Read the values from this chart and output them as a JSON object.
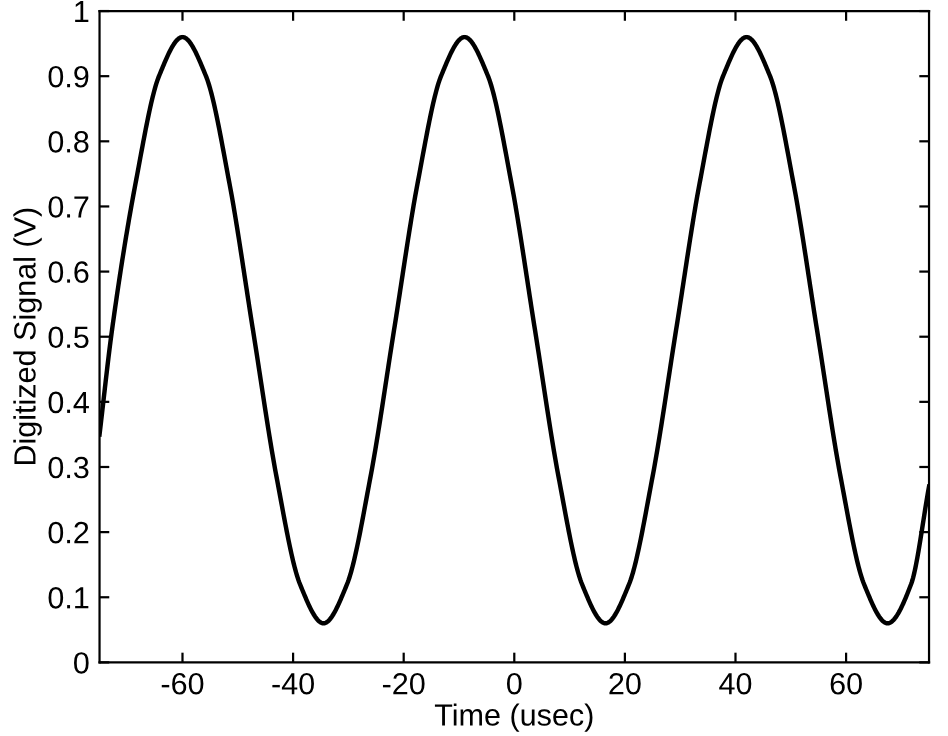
{
  "chart_data": {
    "type": "line",
    "xlabel": "Time (usec)",
    "ylabel": "Digitized Signal (V)",
    "xlim": [
      -75,
      75
    ],
    "xticks": [
      -60,
      -40,
      -20,
      0,
      20,
      40,
      60
    ],
    "ylim": [
      0,
      1
    ],
    "yticks": [
      0,
      0.1,
      0.2,
      0.3,
      0.4,
      0.5,
      0.6,
      0.7,
      0.8,
      0.9,
      1
    ],
    "grid": false,
    "marker": "none",
    "line_style": "solid",
    "series": [
      {
        "color": "#000000",
        "x": [
          -75,
          -72.75,
          -68.5,
          -64.25,
          -60,
          -55.75,
          -51.5,
          -47.25,
          -43,
          -38.75,
          -34.5,
          -30.25,
          -26,
          -21.75,
          -17.5,
          -13.25,
          -9,
          -4.75,
          -0.5,
          3.75,
          8,
          12.25,
          16.5,
          20.75,
          25,
          29.25,
          33.5,
          37.75,
          42,
          46.25,
          50.5,
          54.75,
          59,
          63.25,
          67.5,
          71.75,
          75
        ],
        "values": [
          0.35,
          0.51,
          0.735,
          0.9,
          0.96,
          0.9,
          0.735,
          0.51,
          0.285,
          0.12,
          0.06,
          0.12,
          0.285,
          0.51,
          0.735,
          0.9,
          0.96,
          0.9,
          0.735,
          0.51,
          0.285,
          0.12,
          0.06,
          0.12,
          0.285,
          0.51,
          0.735,
          0.9,
          0.96,
          0.9,
          0.735,
          0.51,
          0.285,
          0.12,
          0.06,
          0.12,
          0.27
        ]
      }
    ]
  }
}
